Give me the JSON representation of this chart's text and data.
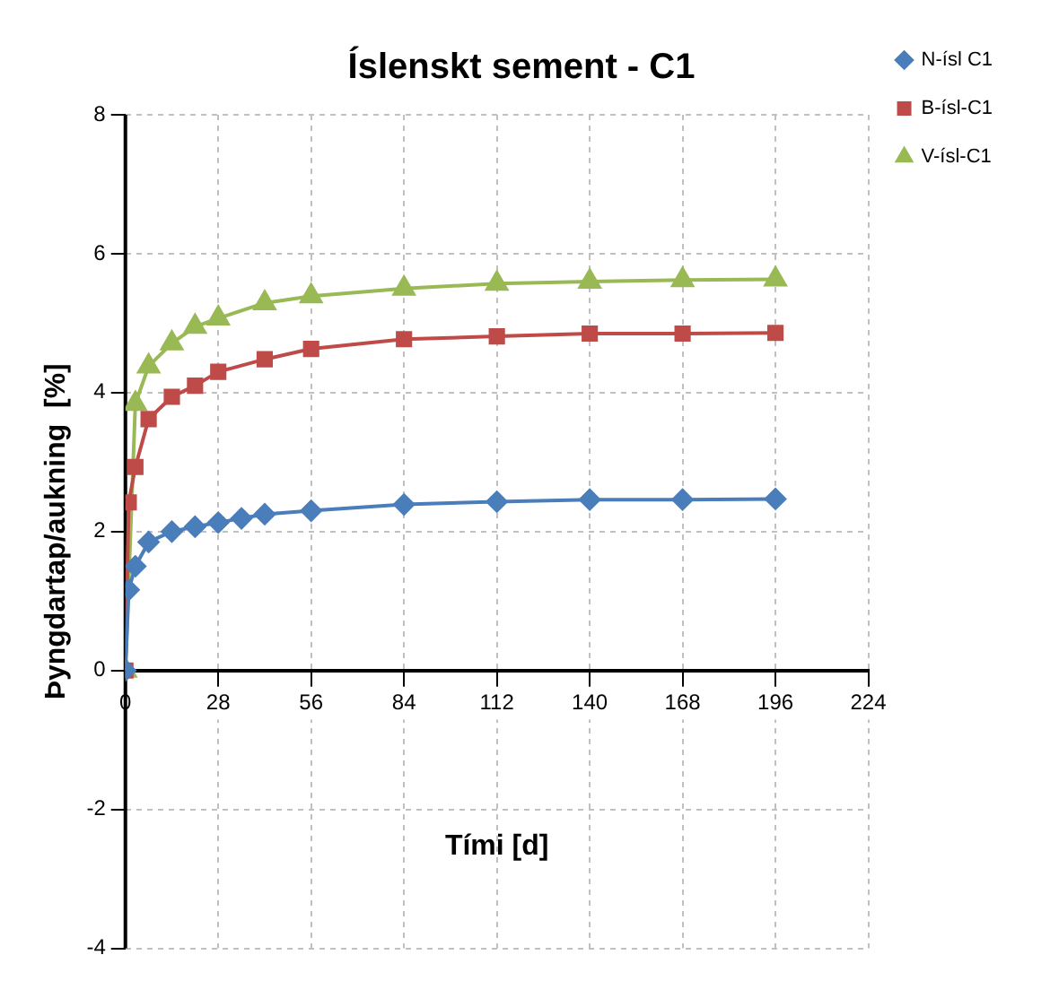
{
  "chart_data": {
    "type": "line",
    "title": "Íslenskt sement - C1",
    "xlabel": "Tími [d]",
    "ylabel": "Þyngdartap/aukning  [%]",
    "xlim": [
      0,
      224
    ],
    "xticks": [
      0,
      28,
      56,
      84,
      112,
      140,
      168,
      196,
      224
    ],
    "ylim": [
      -4,
      8
    ],
    "yticks": [
      -4,
      -2,
      0,
      2,
      4,
      6,
      8
    ],
    "grid": true,
    "legend": "top right",
    "series": [
      {
        "name": "N-ísl C1",
        "color": "#4a7ebb",
        "marker": "diamond",
        "x": [
          0,
          1,
          3,
          7,
          14,
          21,
          28,
          35,
          42,
          56,
          84,
          112,
          140,
          168,
          196
        ],
        "values": [
          0,
          1.16,
          1.5,
          1.85,
          2.0,
          2.07,
          2.13,
          2.19,
          2.25,
          2.3,
          2.39,
          2.43,
          2.46,
          2.46,
          2.47
        ]
      },
      {
        "name": "B-ísl-C1",
        "color": "#be4b48",
        "marker": "square",
        "x": [
          0,
          1,
          3,
          7,
          14,
          21,
          28,
          42,
          56,
          84,
          112,
          140,
          168,
          196
        ],
        "values": [
          0,
          2.42,
          2.93,
          3.62,
          3.94,
          4.1,
          4.3,
          4.48,
          4.63,
          4.77,
          4.81,
          4.85,
          4.85,
          4.86
        ]
      },
      {
        "name": "V-ísl-C1",
        "color": "#98b954",
        "marker": "triangle",
        "x": [
          0,
          3,
          7,
          14,
          21,
          28,
          42,
          56,
          84,
          112,
          140,
          168,
          196
        ],
        "values": [
          0,
          3.84,
          4.38,
          4.71,
          4.95,
          5.07,
          5.29,
          5.39,
          5.5,
          5.57,
          5.6,
          5.62,
          5.63
        ]
      }
    ]
  }
}
